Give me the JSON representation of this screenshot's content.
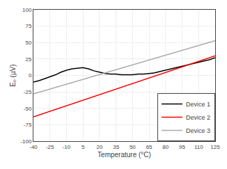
{
  "chart_data": {
    "type": "line",
    "xlabel": "Temperature (°C)",
    "ylabel": "Eₒ (µV)",
    "xlim": [
      -40,
      125
    ],
    "ylim": [
      -100,
      100
    ],
    "xticks": [
      -40,
      -25,
      -10,
      5,
      20,
      35,
      50,
      65,
      80,
      95,
      110,
      125
    ],
    "yticks": [
      -100,
      -75,
      -50,
      -25,
      0,
      25,
      50,
      75,
      100
    ],
    "grid": true,
    "legend": "lower right",
    "series": [
      {
        "name": "Device 1",
        "color": "#000000",
        "x": [
          -40,
          -35,
          -30,
          -25,
          -20,
          -15,
          -10,
          -5,
          0,
          5,
          10,
          15,
          20,
          25,
          30,
          35,
          40,
          45,
          50,
          55,
          60,
          65,
          70,
          75,
          80,
          85,
          90,
          95,
          100,
          105,
          110,
          115,
          120,
          125
        ],
        "values": [
          -10,
          -8,
          -5,
          -2,
          1,
          5,
          8,
          10,
          11,
          12,
          10,
          7,
          5,
          3,
          2,
          2,
          1,
          1,
          1,
          2,
          2,
          3,
          4,
          6,
          8,
          10,
          12,
          14,
          16,
          18,
          20,
          22,
          24,
          27
        ]
      },
      {
        "name": "Device 2",
        "color": "#ff0000",
        "x": [
          -40,
          125
        ],
        "values": [
          -63,
          30
        ]
      },
      {
        "name": "Device 3",
        "color": "#aaaaaa",
        "x": [
          -40,
          125
        ],
        "values": [
          -28,
          53
        ]
      }
    ]
  }
}
